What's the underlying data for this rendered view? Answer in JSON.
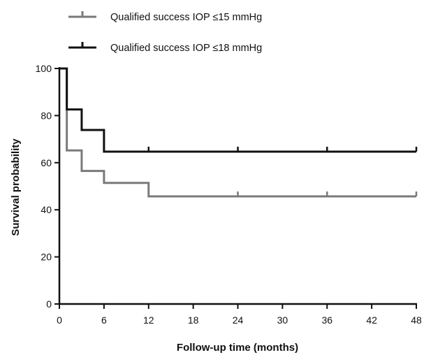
{
  "chart_data": {
    "type": "line",
    "step": true,
    "title": "",
    "xlabel": "Follow-up time (months)",
    "ylabel": "Survival probability",
    "xlim": [
      0,
      48
    ],
    "ylim": [
      0,
      100
    ],
    "xticks": [
      0,
      6,
      12,
      18,
      24,
      30,
      36,
      42,
      48
    ],
    "yticks": [
      0,
      20,
      40,
      60,
      80,
      100
    ],
    "grid": false,
    "legend_position": "top-left",
    "series": [
      {
        "name": "Qualified success IOP ≤15 mmHg",
        "color": "#7a7a7a",
        "x": [
          0,
          1,
          3,
          6,
          12,
          48
        ],
        "y": [
          100,
          65.2,
          56.5,
          51.4,
          45.7,
          45.7
        ],
        "censor_x": [
          24,
          36,
          48
        ]
      },
      {
        "name": "Qualified success IOP ≤18 mmHg",
        "color": "#111111",
        "x": [
          0,
          1,
          3,
          6,
          48
        ],
        "y": [
          100,
          82.6,
          73.9,
          64.7,
          64.7
        ],
        "censor_x": [
          12,
          24,
          36,
          48
        ]
      }
    ]
  }
}
